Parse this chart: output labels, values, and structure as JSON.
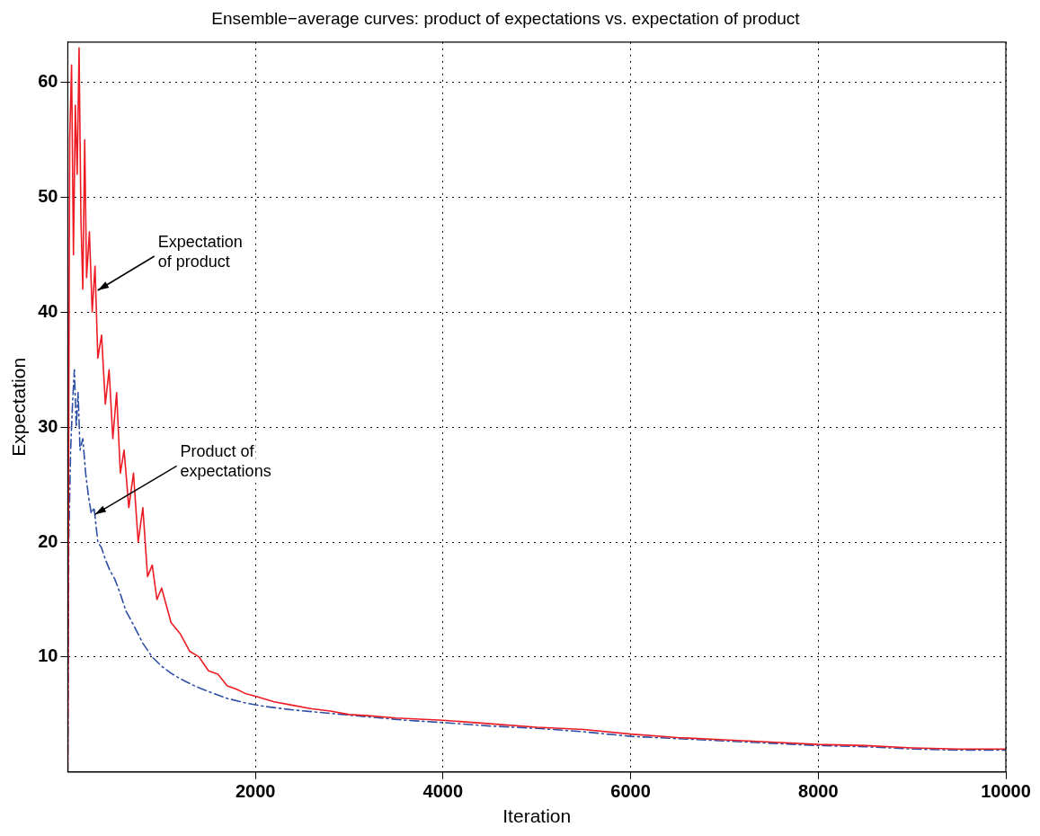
{
  "chart_data": {
    "type": "line",
    "title": "Ensemble−average curves: product of expectations vs. expectation of product",
    "xlabel": "Iteration",
    "ylabel": "Expectation",
    "xlim": [
      0,
      10000
    ],
    "xticks": [
      2000,
      4000,
      6000,
      8000,
      10000
    ],
    "ylim": [
      0,
      63.5
    ],
    "yticks": [
      10,
      20,
      30,
      40,
      50,
      60
    ],
    "grid": true,
    "legend": false,
    "marker": "none",
    "series": [
      {
        "color": "#ed1c24",
        "line_style": "solid",
        "x": [
          0,
          10,
          20,
          40,
          60,
          80,
          100,
          120,
          140,
          160,
          180,
          200,
          230,
          260,
          290,
          320,
          360,
          400,
          440,
          480,
          520,
          560,
          600,
          650,
          700,
          750,
          800,
          850,
          900,
          950,
          1000,
          1100,
          1200,
          1300,
          1400,
          1500,
          1600,
          1700,
          1800,
          1900,
          2000,
          2200,
          2400,
          2600,
          2800,
          3000,
          3200,
          3500,
          4000,
          4500,
          5000,
          5500,
          6000,
          6500,
          7000,
          7500,
          8000,
          8500,
          9000,
          9500,
          10000
        ],
        "values": [
          0,
          30,
          55,
          61.5,
          45,
          58,
          52,
          63,
          48,
          42,
          55,
          43,
          47,
          40,
          44,
          36,
          38,
          32,
          35,
          29,
          33,
          26,
          28,
          23,
          26,
          20,
          23,
          17,
          18,
          15,
          16,
          13,
          12,
          10.5,
          10,
          8.8,
          8.5,
          7.5,
          7.2,
          6.8,
          6.6,
          6.1,
          5.8,
          5.5,
          5.3,
          5.0,
          4.9,
          4.7,
          4.5,
          4.2,
          3.9,
          3.7,
          3.3,
          3.0,
          2.8,
          2.6,
          2.4,
          2.3,
          2.1,
          2.0,
          2.0
        ]
      },
      {
        "color": "#2e4fa3",
        "line_style": "dashed",
        "x": [
          0,
          10,
          30,
          50,
          70,
          90,
          110,
          130,
          160,
          190,
          220,
          250,
          280,
          320,
          360,
          400,
          450,
          500,
          560,
          620,
          700,
          800,
          900,
          1000,
          1100,
          1200,
          1350,
          1500,
          1700,
          1900,
          2100,
          2400,
          2800,
          3200,
          3600,
          4000,
          4500,
          5000,
          5500,
          6000,
          6500,
          7000,
          7500,
          8000,
          8500,
          9000,
          9500,
          10000
        ],
        "values": [
          0,
          20,
          28,
          32,
          35,
          30,
          33,
          28,
          29,
          26,
          24,
          22.5,
          23,
          20,
          19.5,
          18.5,
          17.5,
          16.8,
          15.5,
          14,
          12.8,
          11.2,
          10,
          9.2,
          8.6,
          8.1,
          7.5,
          7,
          6.4,
          6,
          5.7,
          5.4,
          5.1,
          4.8,
          4.5,
          4.3,
          4.0,
          3.8,
          3.5,
          3.1,
          2.9,
          2.7,
          2.5,
          2.3,
          2.2,
          2.0,
          1.9,
          1.9
        ]
      }
    ],
    "annotations": [
      {
        "text": "Expectation\nof product",
        "x": 290,
        "y": 41.9
      },
      {
        "text": "Product of\nexpectations",
        "x": 260,
        "y": 22.4
      }
    ]
  }
}
